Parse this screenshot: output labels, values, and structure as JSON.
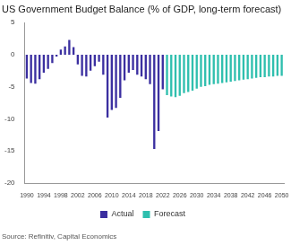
{
  "chart_data": {
    "type": "bar",
    "title": "US Government Budget Balance (% of GDP, long-term forecast)",
    "source": "Source: Refinitiv, Capital Economics",
    "categories": [
      "1990",
      null,
      null,
      null,
      "1994",
      null,
      null,
      null,
      "1998",
      null,
      null,
      null,
      "2002",
      null,
      null,
      null,
      "2006",
      null,
      null,
      null,
      "2010",
      null,
      null,
      null,
      "2014",
      null,
      null,
      null,
      "2018",
      null,
      null,
      null,
      "2022",
      null,
      null,
      null,
      "2026",
      null,
      null,
      null,
      "2030",
      null,
      null,
      null,
      "2034",
      null,
      null,
      null,
      "2038",
      null,
      null,
      null,
      "2042",
      null,
      null,
      null,
      "2046",
      null,
      null,
      null,
      "2050"
    ],
    "series": [
      {
        "name": "Actual",
        "color": "#3b2fa0",
        "values": [
          -3.7,
          -4.4,
          -4.5,
          -3.8,
          -2.8,
          -2.2,
          -1.3,
          -0.3,
          0.8,
          1.3,
          2.3,
          1.2,
          -1.5,
          -3.3,
          -3.4,
          -2.5,
          -1.8,
          -1.1,
          -3.1,
          -9.8,
          -8.6,
          -8.3,
          -6.7,
          -4.0,
          -2.8,
          -2.4,
          -3.1,
          -3.4,
          -3.8,
          -4.6,
          -14.7,
          -11.9,
          -5.4,
          null,
          null,
          null,
          null,
          null,
          null,
          null,
          null,
          null,
          null,
          null,
          null,
          null,
          null,
          null,
          null,
          null,
          null,
          null,
          null,
          null,
          null,
          null,
          null,
          null,
          null,
          null,
          null
        ]
      },
      {
        "name": "Forecast",
        "color": "#2fbfae",
        "values": [
          null,
          null,
          null,
          null,
          null,
          null,
          null,
          null,
          null,
          null,
          null,
          null,
          null,
          null,
          null,
          null,
          null,
          null,
          null,
          null,
          null,
          null,
          null,
          null,
          null,
          null,
          null,
          null,
          null,
          null,
          null,
          null,
          null,
          -6.3,
          -6.5,
          -6.6,
          -6.4,
          -6.0,
          -5.8,
          -5.6,
          -5.3,
          -5.0,
          -4.9,
          -4.7,
          -4.6,
          -4.5,
          -4.4,
          -4.3,
          -4.2,
          -4.1,
          -4.0,
          -3.9,
          -3.8,
          -3.7,
          -3.6,
          -3.5,
          -3.5,
          -3.4,
          -3.4,
          -3.3,
          -3.3
        ]
      }
    ],
    "ylim": [
      -20,
      5
    ],
    "yticks": [
      -20,
      -15,
      -10,
      -5,
      0,
      5
    ],
    "grid": false,
    "legend": "bottom"
  }
}
